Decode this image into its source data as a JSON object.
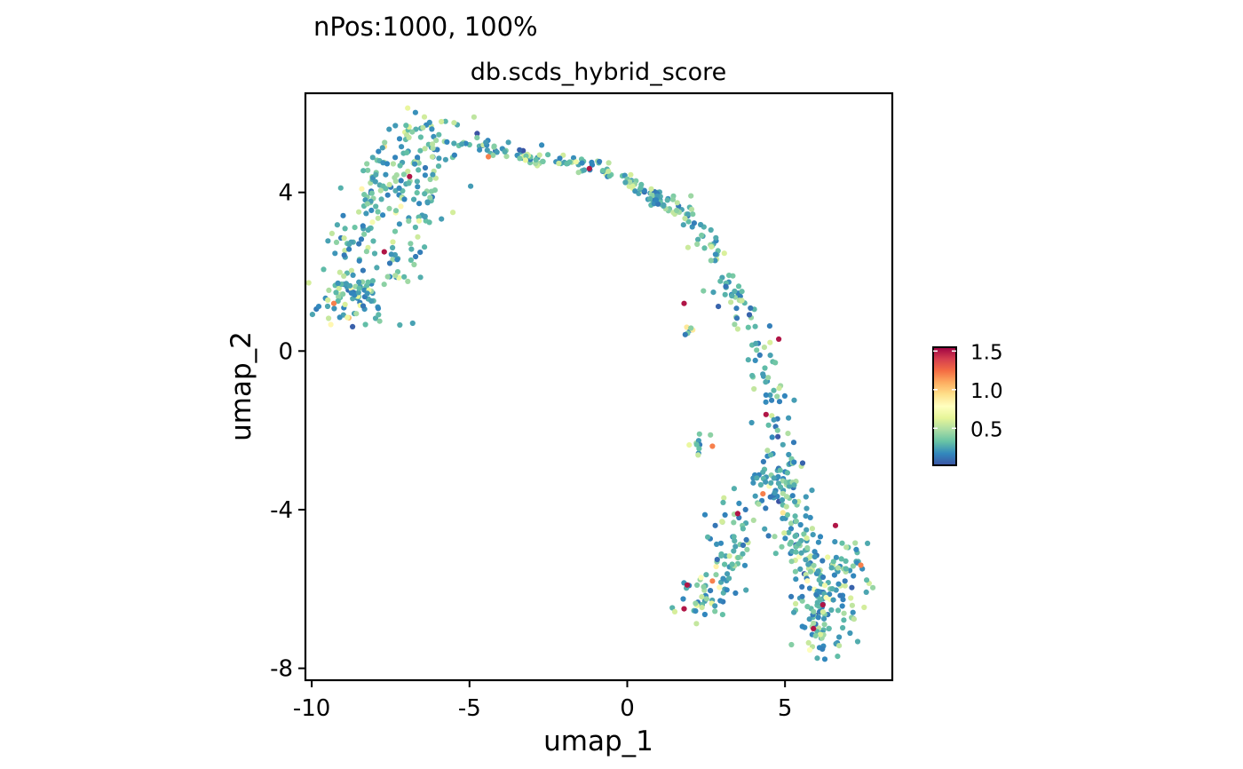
{
  "header": {
    "subtitle": "nPos:1000, 100%"
  },
  "chart_data": {
    "type": "scatter",
    "title": "db.scds_hybrid_score",
    "xlabel": "umap_1",
    "ylabel": "umap_2",
    "xlim": [
      -10.2,
      8.4
    ],
    "ylim": [
      -8.3,
      6.5
    ],
    "xticks": [
      -10,
      -5,
      0,
      5
    ],
    "xtick_labels": [
      "-10",
      "-5",
      "0",
      "5"
    ],
    "yticks": [
      4,
      0,
      -4,
      -8
    ],
    "ytick_labels": [
      "4",
      "0",
      "-4",
      "-8"
    ],
    "grid": false,
    "legend": {
      "position": "right",
      "min": 0.02,
      "max": 1.55,
      "ticks": [
        1.5,
        1.0,
        0.5
      ],
      "tick_labels": [
        "1.5",
        "1.0",
        "0.5"
      ]
    },
    "colors": {
      "palette": [
        "#3B53A4",
        "#3288BD",
        "#66C2A5",
        "#ABDDA4",
        "#E6F598",
        "#FFFFBF",
        "#FEE08B",
        "#FDAE61",
        "#F46D43",
        "#D53E4F",
        "#9E0142"
      ],
      "axis": "#000000"
    },
    "point_count": 1000,
    "arm_points": [
      [
        -9.3,
        0.9
      ],
      [
        -9.0,
        1.8
      ],
      [
        -8.9,
        2.8
      ],
      [
        -8.3,
        3.5
      ],
      [
        -7.6,
        4.7
      ],
      [
        -7.1,
        5.3
      ],
      [
        -6.6,
        5.5
      ],
      [
        -6.0,
        5.3
      ],
      [
        -5.0,
        5.3
      ],
      [
        -4.0,
        5.1
      ],
      [
        -3.0,
        4.9
      ],
      [
        -2.0,
        4.8
      ],
      [
        -1.0,
        4.6
      ],
      [
        0.0,
        4.3
      ],
      [
        0.6,
        4.0
      ],
      [
        1.4,
        3.7
      ],
      [
        2.2,
        3.2
      ],
      [
        2.8,
        2.5
      ],
      [
        3.3,
        1.6
      ],
      [
        3.8,
        0.7
      ],
      [
        4.3,
        -0.2
      ],
      [
        4.6,
        -1.2
      ],
      [
        4.8,
        -2.2
      ],
      [
        5.0,
        -3.0
      ],
      [
        5.3,
        -3.9
      ],
      [
        5.6,
        -4.8
      ],
      [
        5.8,
        -5.7
      ],
      [
        6.0,
        -6.6
      ],
      [
        6.0,
        -7.4
      ]
    ],
    "clusters": [
      {
        "center": [
          -8.6,
          1.4
        ],
        "sx": 0.45,
        "sy": 0.35,
        "n": 55,
        "mean": 0.75
      },
      {
        "center": [
          -6.8,
          4.2
        ],
        "sx": 0.55,
        "sy": 0.7,
        "n": 80,
        "mean": 0.35
      },
      {
        "center": [
          -7.3,
          2.2
        ],
        "sx": 0.45,
        "sy": 0.6,
        "n": 30,
        "mean": 0.45
      },
      {
        "center": [
          2.2,
          -2.3
        ],
        "sx": 0.2,
        "sy": 0.2,
        "n": 10,
        "mean": 0.5
      },
      {
        "center": [
          1.9,
          0.5
        ],
        "sx": 0.12,
        "sy": 0.15,
        "n": 6,
        "mean": 0.7
      },
      {
        "center": [
          2.4,
          -6.2
        ],
        "sx": 0.4,
        "sy": 0.3,
        "n": 45,
        "mean": 0.6
      },
      {
        "center": [
          3.3,
          -4.7
        ],
        "sx": 0.45,
        "sy": 0.6,
        "n": 55,
        "mean": 0.45
      },
      {
        "center": [
          6.4,
          -6.5
        ],
        "sx": 0.6,
        "sy": 0.6,
        "n": 90,
        "mean": 0.4
      },
      {
        "center": [
          7.0,
          -5.3
        ],
        "sx": 0.3,
        "sy": 0.4,
        "n": 25,
        "mean": 0.5
      },
      {
        "center": [
          4.7,
          -3.5
        ],
        "sx": 0.4,
        "sy": 0.5,
        "n": 45,
        "mean": 0.4
      },
      {
        "center": [
          5.6,
          -5.2
        ],
        "sx": 0.35,
        "sy": 0.5,
        "n": 35,
        "mean": 0.45
      }
    ],
    "high_score_points": [
      [
        -9.3,
        1.2
      ],
      [
        -7.7,
        2.5
      ],
      [
        -6.9,
        4.4
      ],
      [
        -4.4,
        4.9
      ],
      [
        -1.2,
        4.6
      ],
      [
        1.8,
        1.2
      ],
      [
        2.7,
        -2.4
      ],
      [
        4.4,
        -1.6
      ],
      [
        4.8,
        0.3
      ],
      [
        4.3,
        -3.6
      ],
      [
        3.5,
        -4.1
      ],
      [
        6.6,
        -4.4
      ],
      [
        2.7,
        -5.8
      ],
      [
        1.8,
        -6.5
      ],
      [
        6.2,
        -6.4
      ],
      [
        7.4,
        -5.4
      ],
      [
        5.9,
        -7.0
      ],
      [
        1.9,
        -5.9
      ]
    ]
  }
}
